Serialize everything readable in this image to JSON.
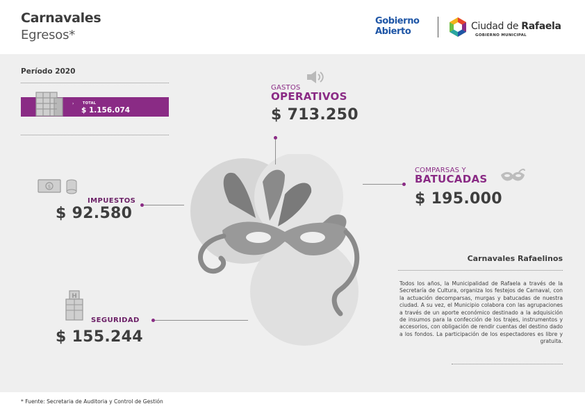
{
  "header": {
    "title": "Carnavales",
    "subtitle": "Egresos*",
    "logo_gobierno_line1": "Gobierno",
    "logo_gobierno_line2": "Abierto",
    "logo_ciudad_prefix": "Ciudad de ",
    "logo_ciudad_name": "Rafaela",
    "logo_ciudad_sub": "GOBIERNO MUNICIPAL"
  },
  "periodo": "Período 2020",
  "total": {
    "label": "TOTAL",
    "value": "$ 1.156.074"
  },
  "gastos": {
    "line1": "GASTOS",
    "line2": "OPERATIVOS",
    "amount": "$ 713.250"
  },
  "comparsas": {
    "line1": "COMPARSAS Y",
    "line2": "BATUCADAS",
    "amount": "$ 195.000"
  },
  "impuestos": {
    "label": "IMPUESTOS",
    "amount": "$ 92.580"
  },
  "seguridad": {
    "label": "SEGURIDAD",
    "amount": "$ 155.244"
  },
  "info": {
    "title": "Carnavales Rafaelinos",
    "text": "Todos los años, la Municipalidad de Rafaela a través de la Secretaría de Cultura, organiza los festejos de Carnaval, con la actuación decomparsas, murgas y batucadas de nuestra ciudad.  A su vez, el Municipio colabora con las agrupaciones a través de un aporte económico destinado a la adquisición de insumos para la confección de los trajes, instrumentos y accesorios, con obligación de rendir cuentas del destino dado a los fondos. La participación de los espectadores es libre y gratuita."
  },
  "footnote": "* Fuente: Secretaria de Auditoria y Control de Gestión",
  "colors": {
    "accent": "#8a2b85",
    "panel": "#efefef",
    "brand_blue": "#1f56a6"
  },
  "icons": [
    "building-icon",
    "speaker-icon",
    "mask-icon",
    "money-icon",
    "coins-icon",
    "hospital-icon",
    "carnival-mask-illustration",
    "ciudad-logo-icon"
  ]
}
